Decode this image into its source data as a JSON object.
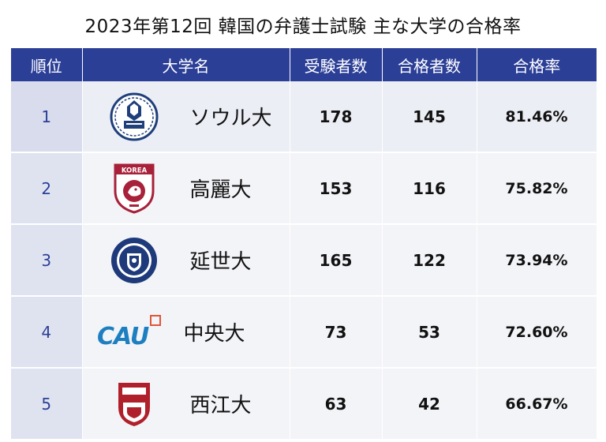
{
  "title": "2023年第12回 韓国の弁護士試験 主な大学の合格率",
  "headers": {
    "rank": "順位",
    "university": "大学名",
    "examinees": "受験者数",
    "passers": "合格者数",
    "pass_rate": "合格率"
  },
  "rows": [
    {
      "rank": "1",
      "university": "ソウル大",
      "logo_icon": "seoul-national-university-emblem-icon",
      "examinees": "178",
      "passers": "145",
      "pass_rate": "81.46%"
    },
    {
      "rank": "2",
      "university": "高麗大",
      "logo_icon": "korea-university-emblem-icon",
      "logo_text": "KOREA",
      "examinees": "153",
      "passers": "116",
      "pass_rate": "75.82%"
    },
    {
      "rank": "3",
      "university": "延世大",
      "logo_icon": "yonsei-university-emblem-icon",
      "examinees": "165",
      "passers": "122",
      "pass_rate": "73.94%"
    },
    {
      "rank": "4",
      "university": "中央大",
      "logo_icon": "chung-ang-university-logo-icon",
      "logo_text": "CAU",
      "examinees": "73",
      "passers": "53",
      "pass_rate": "72.60%"
    },
    {
      "rank": "5",
      "university": "西江大",
      "logo_icon": "sogang-university-emblem-icon",
      "examinees": "63",
      "passers": "42",
      "pass_rate": "66.67%"
    }
  ],
  "colors": {
    "header_bg": "#2c3f97",
    "rank_text": "#2c3f97",
    "korea_red": "#a8203a",
    "yonsei_blue": "#1f3a7a",
    "cau_blue": "#1e7fc0",
    "sogang_red": "#b0202a"
  }
}
